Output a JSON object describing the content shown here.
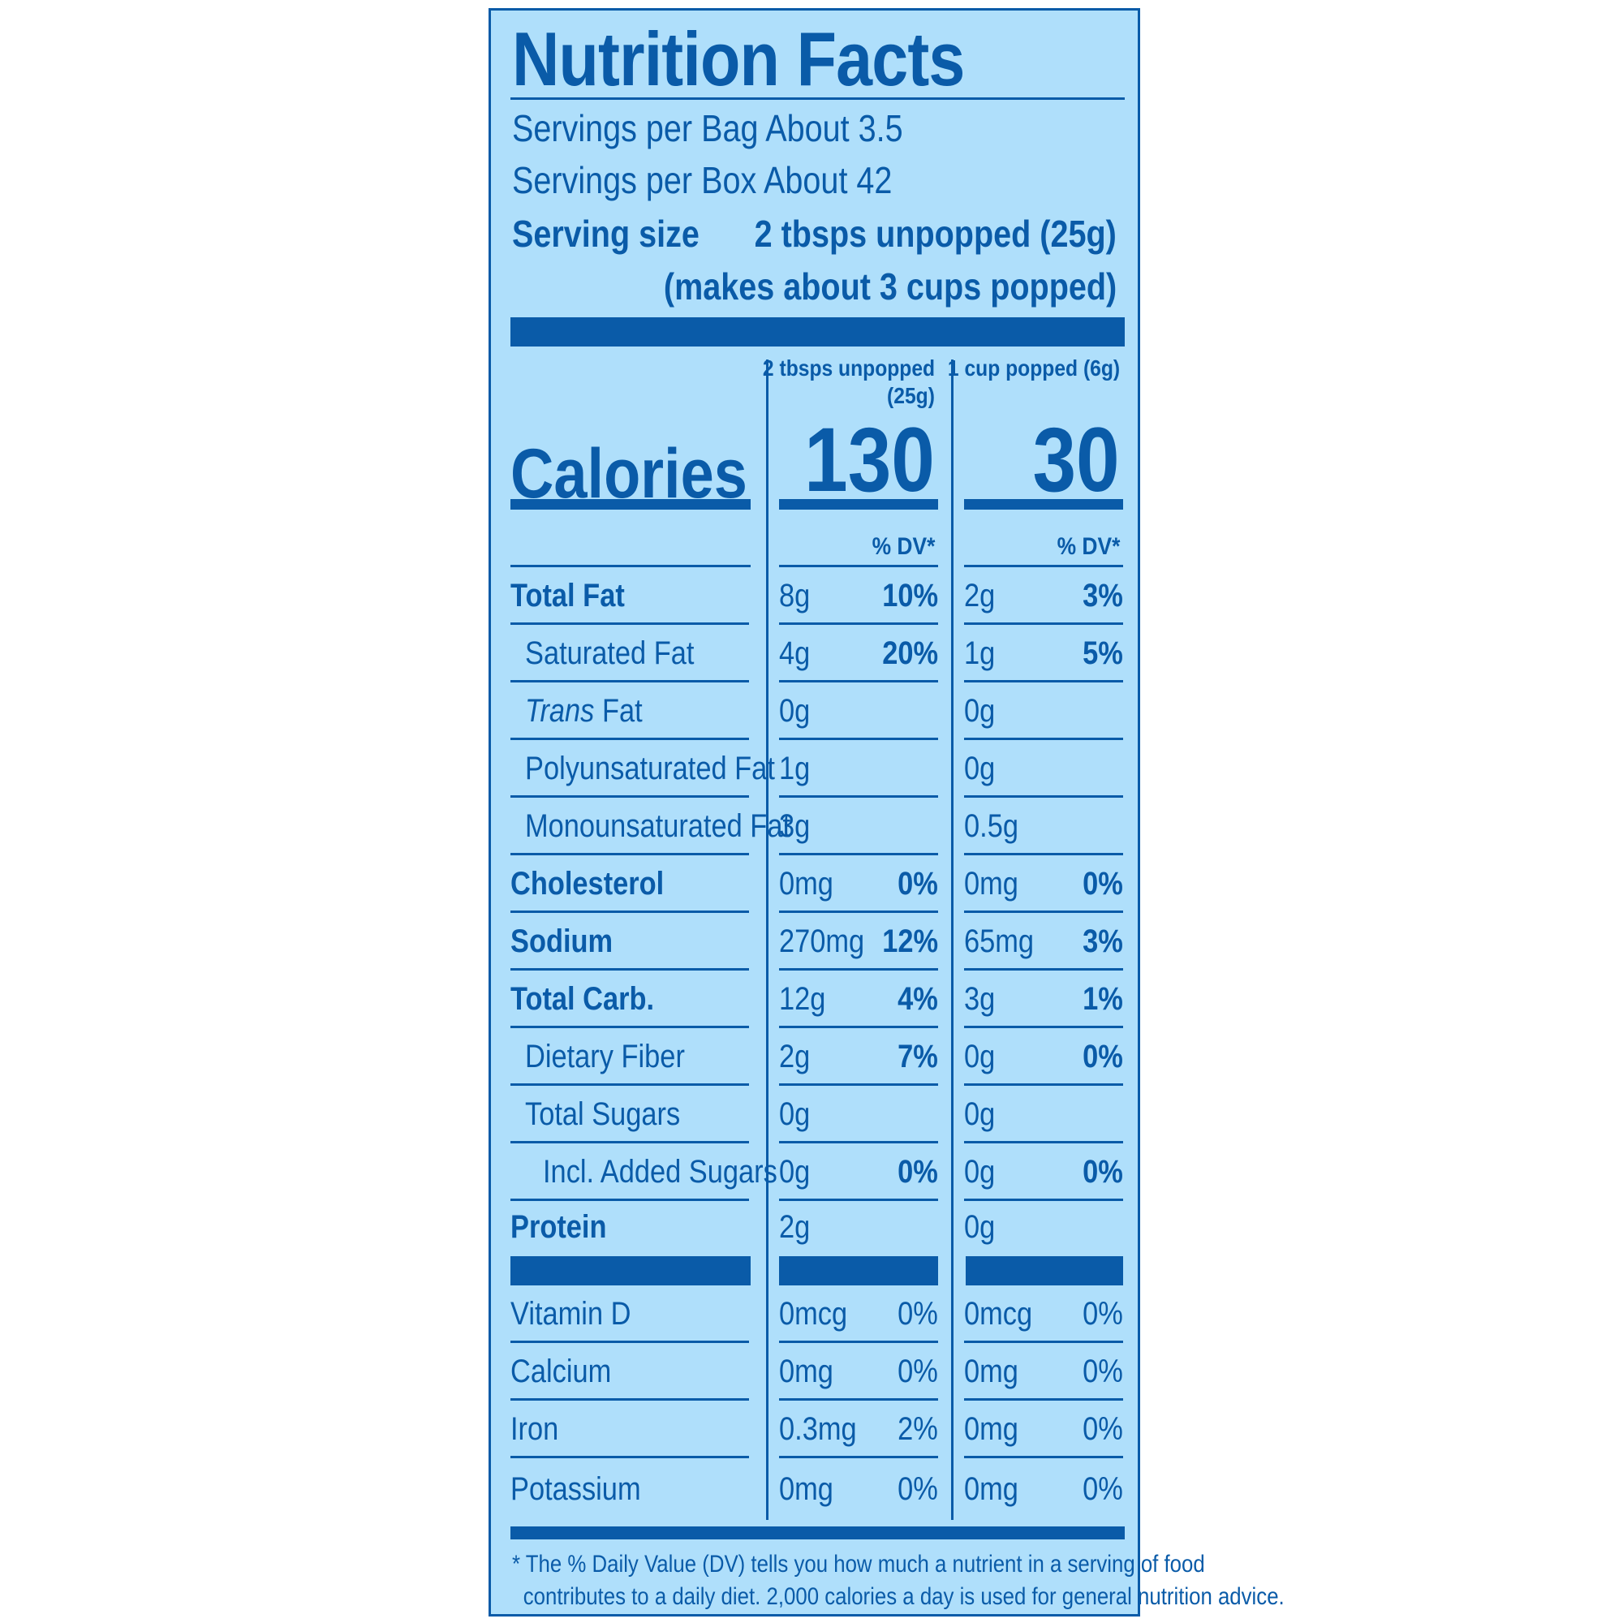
{
  "title": "Nutrition Facts",
  "servings_per_bag": "Servings per Bag About 3.5",
  "servings_per_box": "Servings per Box About 42",
  "serving_size_label": "Serving size",
  "serving_size_value": "2 tbsps unpopped (25g)",
  "serving_size_note": "(makes about 3 cups popped)",
  "columns": [
    {
      "header_line1": "2 tbsps unpopped",
      "header_line2": "(25g)",
      "calories": "130",
      "dv_label": "% DV*"
    },
    {
      "header_line1": "1 cup popped (6g)",
      "header_line2": "",
      "calories": "30",
      "dv_label": "% DV*"
    }
  ],
  "calories_label": "Calories",
  "nutrients": [
    {
      "name": "Total Fat",
      "c1_amount": "8g",
      "c1_dv": "10%",
      "c2_amount": "2g",
      "c2_dv": "3%"
    },
    {
      "name": "Saturated Fat",
      "c1_amount": "4g",
      "c1_dv": "20%",
      "c2_amount": "1g",
      "c2_dv": "5%"
    },
    {
      "name_italic": "Trans",
      "name_rest": " Fat",
      "c1_amount": "0g",
      "c1_dv": "",
      "c2_amount": "0g",
      "c2_dv": ""
    },
    {
      "name": "Polyunsaturated Fat",
      "c1_amount": "1g",
      "c1_dv": "",
      "c2_amount": "0g",
      "c2_dv": ""
    },
    {
      "name": "Monounsaturated Fat",
      "c1_amount": "3g",
      "c1_dv": "",
      "c2_amount": "0.5g",
      "c2_dv": ""
    },
    {
      "name": "Cholesterol",
      "c1_amount": "0mg",
      "c1_dv": "0%",
      "c2_amount": "0mg",
      "c2_dv": "0%"
    },
    {
      "name": "Sodium",
      "c1_amount": "270mg",
      "c1_dv": "12%",
      "c2_amount": "65mg",
      "c2_dv": "3%"
    },
    {
      "name": "Total Carb.",
      "c1_amount": "12g",
      "c1_dv": "4%",
      "c2_amount": "3g",
      "c2_dv": "1%"
    },
    {
      "name": "Dietary Fiber",
      "c1_amount": "2g",
      "c1_dv": "7%",
      "c2_amount": "0g",
      "c2_dv": "0%"
    },
    {
      "name": "Total Sugars",
      "c1_amount": "0g",
      "c1_dv": "",
      "c2_amount": "0g",
      "c2_dv": ""
    },
    {
      "name": "Incl. Added Sugars",
      "c1_amount": "0g",
      "c1_dv": "0%",
      "c2_amount": "0g",
      "c2_dv": "0%"
    },
    {
      "name": "Protein",
      "c1_amount": "2g",
      "c1_dv": "",
      "c2_amount": "0g",
      "c2_dv": ""
    }
  ],
  "vitamins": [
    {
      "name": "Vitamin D",
      "c1_amount": "0mcg",
      "c1_dv": "0%",
      "c2_amount": "0mcg",
      "c2_dv": "0%"
    },
    {
      "name": "Calcium",
      "c1_amount": "0mg",
      "c1_dv": "0%",
      "c2_amount": "0mg",
      "c2_dv": "0%"
    },
    {
      "name": "Iron",
      "c1_amount": "0.3mg",
      "c1_dv": "2%",
      "c2_amount": "0mg",
      "c2_dv": "0%"
    },
    {
      "name": "Potassium",
      "c1_amount": "0mg",
      "c1_dv": "0%",
      "c2_amount": "0mg",
      "c2_dv": "0%"
    }
  ],
  "footnote_line1": "* The % Daily Value (DV) tells you how much a nutrient in a serving of food",
  "footnote_line2": "contributes to a daily diet. 2,000 calories a day is used for general nutrition advice.",
  "colors": {
    "ink": "#0a5ba8",
    "background": "#afdffb"
  }
}
